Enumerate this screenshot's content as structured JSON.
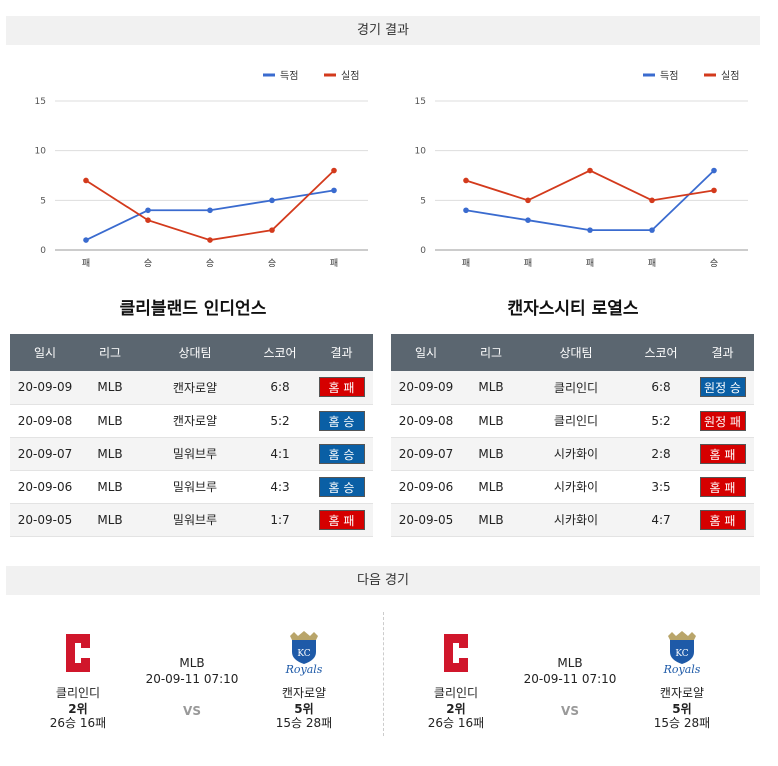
{
  "sections": {
    "results_title": "경기 결과",
    "next_title": "다음 경기"
  },
  "legend": {
    "scored": "득점",
    "allowed": "실점"
  },
  "colors": {
    "scored": "#3a6bcf",
    "allowed": "#d33a1c",
    "win": "#0a5fa5",
    "loss": "#d50000"
  },
  "chart_data": [
    {
      "type": "line",
      "categories": [
        "패",
        "승",
        "승",
        "승",
        "패"
      ],
      "ylim": [
        0,
        15
      ],
      "yticks": [
        0,
        5,
        10,
        15
      ],
      "series": [
        {
          "name": "득점",
          "values": [
            1,
            4,
            4,
            5,
            6
          ]
        },
        {
          "name": "실점",
          "values": [
            7,
            3,
            1,
            2,
            8
          ]
        }
      ],
      "grid": true,
      "legend_position": "top-right"
    },
    {
      "type": "line",
      "categories": [
        "패",
        "패",
        "패",
        "패",
        "승"
      ],
      "ylim": [
        0,
        15
      ],
      "yticks": [
        0,
        5,
        10,
        15
      ],
      "series": [
        {
          "name": "득점",
          "values": [
            4,
            3,
            2,
            2,
            8
          ]
        },
        {
          "name": "실점",
          "values": [
            7,
            5,
            8,
            5,
            6
          ]
        }
      ],
      "grid": true,
      "legend_position": "top-right"
    }
  ],
  "teams": [
    {
      "name": "클리블랜드 인디언스",
      "headers": [
        "일시",
        "리그",
        "상대팀",
        "스코어",
        "결과"
      ],
      "rows": [
        {
          "date": "20-09-09",
          "league": "MLB",
          "opponent": "캔자로얄",
          "score": "6:8",
          "result": "홈 패",
          "type": "loss"
        },
        {
          "date": "20-09-08",
          "league": "MLB",
          "opponent": "캔자로얄",
          "score": "5:2",
          "result": "홈 승",
          "type": "win"
        },
        {
          "date": "20-09-07",
          "league": "MLB",
          "opponent": "밀워브루",
          "score": "4:1",
          "result": "홈 승",
          "type": "win"
        },
        {
          "date": "20-09-06",
          "league": "MLB",
          "opponent": "밀워브루",
          "score": "4:3",
          "result": "홈 승",
          "type": "win"
        },
        {
          "date": "20-09-05",
          "league": "MLB",
          "opponent": "밀워브루",
          "score": "1:7",
          "result": "홈 패",
          "type": "loss"
        }
      ]
    },
    {
      "name": "캔자스시티 로열스",
      "headers": [
        "일시",
        "리그",
        "상대팀",
        "스코어",
        "결과"
      ],
      "rows": [
        {
          "date": "20-09-09",
          "league": "MLB",
          "opponent": "클리인디",
          "score": "6:8",
          "result": "원정 승",
          "type": "win"
        },
        {
          "date": "20-09-08",
          "league": "MLB",
          "opponent": "클리인디",
          "score": "5:2",
          "result": "원정 패",
          "type": "loss"
        },
        {
          "date": "20-09-07",
          "league": "MLB",
          "opponent": "시카화이",
          "score": "2:8",
          "result": "홈 패",
          "type": "loss"
        },
        {
          "date": "20-09-06",
          "league": "MLB",
          "opponent": "시카화이",
          "score": "3:5",
          "result": "홈 패",
          "type": "loss"
        },
        {
          "date": "20-09-05",
          "league": "MLB",
          "opponent": "시카화이",
          "score": "4:7",
          "result": "홈 패",
          "type": "loss"
        }
      ]
    }
  ],
  "next_games": [
    {
      "league": "MLB",
      "datetime": "20-09-11 07:10",
      "vs": "VS",
      "home": {
        "name": "클리인디",
        "rank": "2위",
        "record": "26승 16패",
        "logo": "cleveland-c-logo"
      },
      "away": {
        "name": "캔자로얄",
        "rank": "5위",
        "record": "15승 28패",
        "logo": "royals-logo"
      }
    },
    {
      "league": "MLB",
      "datetime": "20-09-11 07:10",
      "vs": "VS",
      "home": {
        "name": "클리인디",
        "rank": "2위",
        "record": "26승 16패",
        "logo": "cleveland-c-logo"
      },
      "away": {
        "name": "캔자로얄",
        "rank": "5위",
        "record": "15승 28패",
        "logo": "royals-logo"
      }
    }
  ]
}
